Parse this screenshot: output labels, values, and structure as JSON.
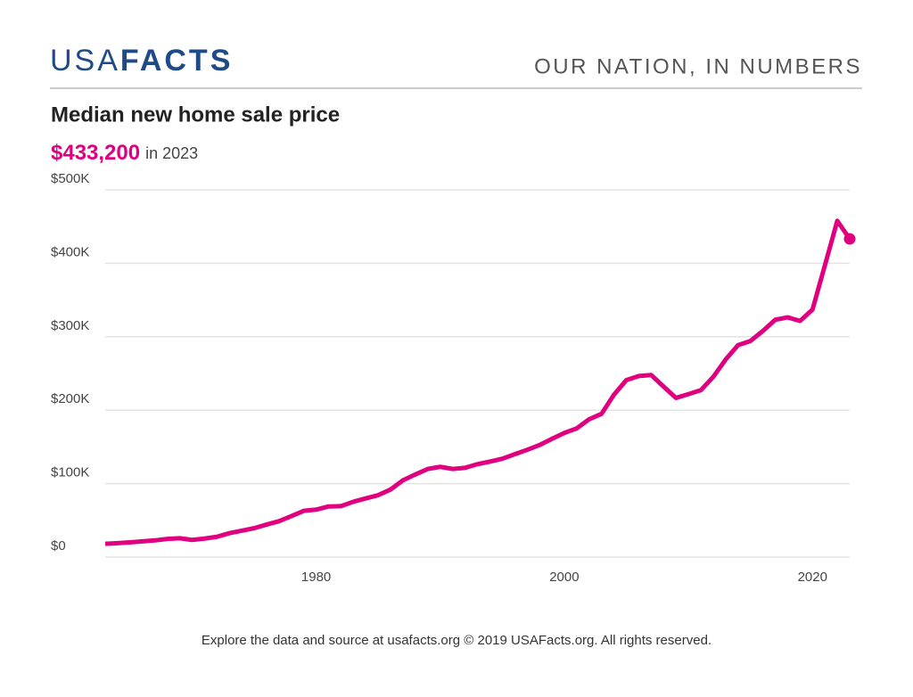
{
  "header": {
    "logo_left": "USA",
    "logo_right": "FACTS",
    "tagline": "OUR NATION, IN NUMBERS"
  },
  "footer": "Explore the data and source at usafacts.org © 2019 USAFacts.org. All rights reserved.",
  "chart_data": {
    "type": "line",
    "title": "Median new home sale price",
    "headline": {
      "value": 433200,
      "label": "$433,200",
      "period": "in 2023"
    },
    "color": "#e0007f",
    "x": [
      1963,
      1964,
      1965,
      1966,
      1967,
      1968,
      1969,
      1970,
      1971,
      1972,
      1973,
      1974,
      1975,
      1976,
      1977,
      1978,
      1979,
      1980,
      1981,
      1982,
      1983,
      1984,
      1985,
      1986,
      1987,
      1988,
      1989,
      1990,
      1991,
      1992,
      1993,
      1994,
      1995,
      1996,
      1997,
      1998,
      1999,
      2000,
      2001,
      2002,
      2003,
      2004,
      2005,
      2006,
      2007,
      2008,
      2009,
      2010,
      2011,
      2012,
      2013,
      2014,
      2015,
      2016,
      2017,
      2018,
      2019,
      2020,
      2021,
      2022,
      2023
    ],
    "values": [
      18000,
      18900,
      20000,
      21400,
      22700,
      24700,
      25600,
      23400,
      25200,
      27600,
      32500,
      35900,
      39300,
      44200,
      48800,
      55700,
      62900,
      64600,
      68900,
      69300,
      75300,
      79900,
      84300,
      92000,
      104500,
      112500,
      120000,
      122900,
      120000,
      121500,
      126500,
      130000,
      133900,
      140000,
      146000,
      152500,
      161000,
      169000,
      175200,
      187600,
      195000,
      221000,
      240900,
      246500,
      247900,
      232100,
      216700,
      221800,
      227200,
      245200,
      268900,
      288500,
      294200,
      307800,
      323100,
      326400,
      321500,
      336900,
      397100,
      457800,
      433200
    ],
    "xlim": [
      1963,
      2023
    ],
    "xticks": [
      1980,
      2000,
      2020
    ],
    "ylim": [
      0,
      500000
    ],
    "yticks": [
      {
        "value": 0,
        "label": "$0"
      },
      {
        "value": 100000,
        "label": "$100K"
      },
      {
        "value": 200000,
        "label": "$200K"
      },
      {
        "value": 300000,
        "label": "$300K"
      },
      {
        "value": 400000,
        "label": "$400K"
      },
      {
        "value": 500000,
        "label": "$500K"
      }
    ],
    "grid": true
  }
}
